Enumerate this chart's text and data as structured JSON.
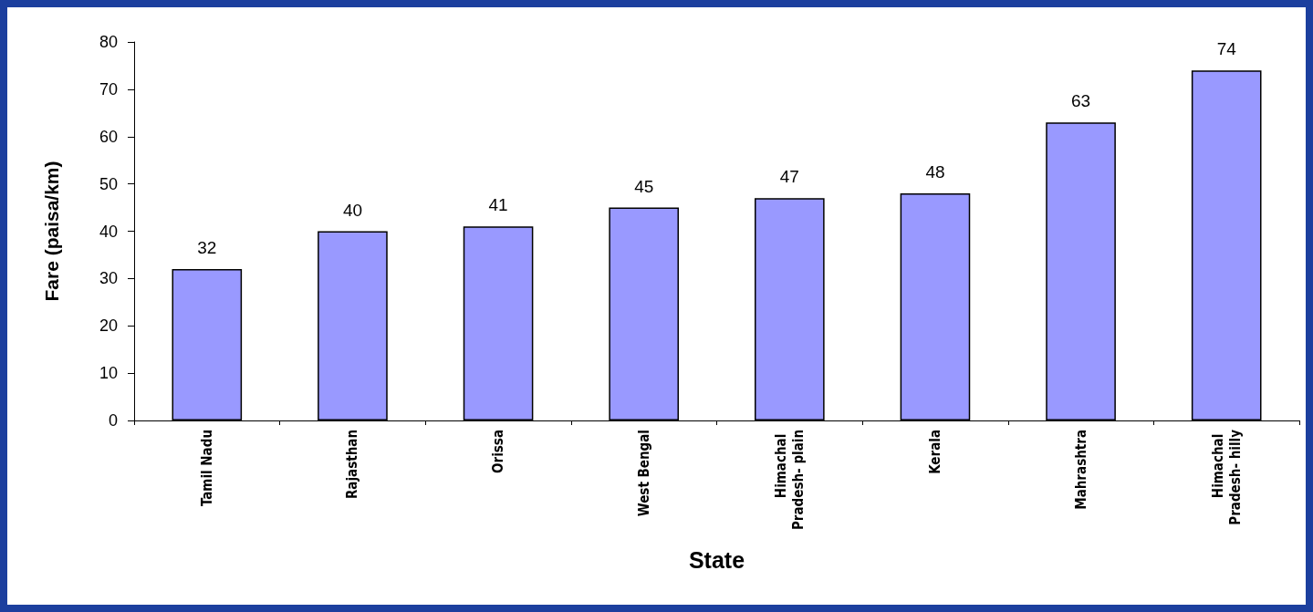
{
  "chart_data": {
    "type": "bar",
    "xlabel": "State",
    "ylabel": "Fare (paisa/km)",
    "categories": [
      "Tamil Nadu",
      "Rajasthan",
      "Orissa",
      "West Bengal",
      "Himachal Pradesh- plain",
      "Kerala",
      "Mahrashtra",
      "Himachal Pradesh- hilly"
    ],
    "values": [
      32,
      40,
      41,
      45,
      47,
      48,
      63,
      74
    ],
    "color": "#9999ff",
    "ylim": [
      0,
      80
    ],
    "yticks": [
      0,
      10,
      20,
      30,
      40,
      50,
      60,
      70,
      80
    ],
    "grid": false,
    "data_labels": true
  }
}
